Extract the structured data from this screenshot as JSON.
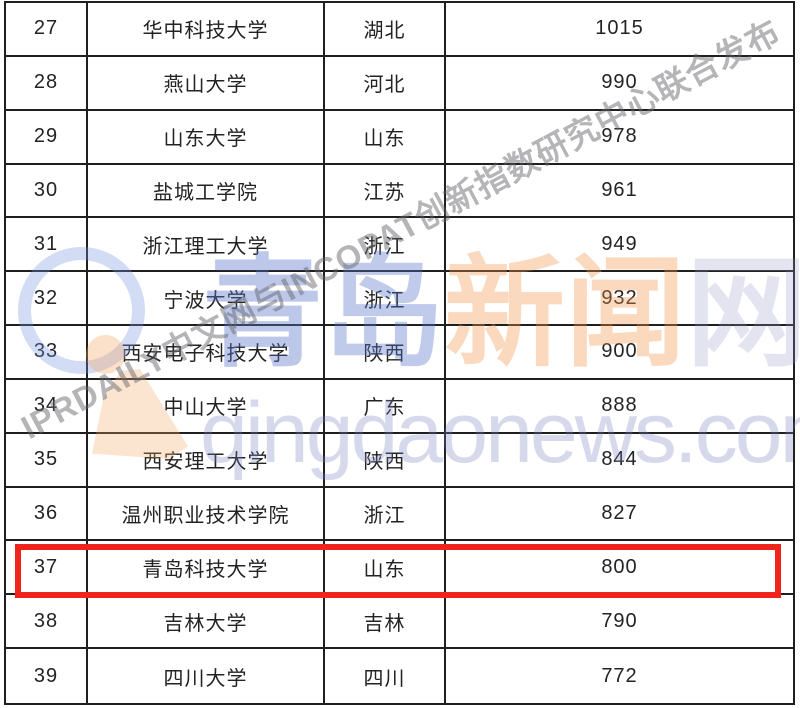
{
  "watermark": {
    "brand_chars": [
      {
        "char": "青",
        "color": "rgba(90,116,200,0.40)"
      },
      {
        "char": "岛",
        "color": "rgba(90,116,200,0.38)"
      },
      {
        "char": "新",
        "color": "rgba(242,150,74,0.36)"
      },
      {
        "char": "闻",
        "color": "rgba(242,150,74,0.36)"
      },
      {
        "char": "网",
        "color": "rgba(150,150,200,0.26)"
      }
    ],
    "url": "qingdaonews.com",
    "diagonal": "IPRDAILY中文网与INCOPAT创新指数研究中心联合发布",
    "logo_blue": "#7896e1",
    "logo_orange": "#f3a664"
  },
  "highlight": {
    "row_rank": "37",
    "color": "#f0241a"
  },
  "table": {
    "columns": [
      "rank",
      "university",
      "province",
      "score"
    ],
    "rows": [
      {
        "rank": "27",
        "university": "华中科技大学",
        "province": "湖北",
        "score": "1015"
      },
      {
        "rank": "28",
        "university": "燕山大学",
        "province": "河北",
        "score": "990"
      },
      {
        "rank": "29",
        "university": "山东大学",
        "province": "山东",
        "score": "978"
      },
      {
        "rank": "30",
        "university": "盐城工学院",
        "province": "江苏",
        "score": "961"
      },
      {
        "rank": "31",
        "university": "浙江理工大学",
        "province": "浙江",
        "score": "949"
      },
      {
        "rank": "32",
        "university": "宁波大学",
        "province": "浙江",
        "score": "932"
      },
      {
        "rank": "33",
        "university": "西安电子科技大学",
        "province": "陕西",
        "score": "900"
      },
      {
        "rank": "34",
        "university": "中山大学",
        "province": "广东",
        "score": "888"
      },
      {
        "rank": "35",
        "university": "西安理工大学",
        "province": "陕西",
        "score": "844"
      },
      {
        "rank": "36",
        "university": "温州职业技术学院",
        "province": "浙江",
        "score": "827"
      },
      {
        "rank": "37",
        "university": "青岛科技大学",
        "province": "山东",
        "score": "800"
      },
      {
        "rank": "38",
        "university": "吉林大学",
        "province": "吉林",
        "score": "790"
      },
      {
        "rank": "39",
        "university": "四川大学",
        "province": "四川",
        "score": "772"
      }
    ]
  }
}
